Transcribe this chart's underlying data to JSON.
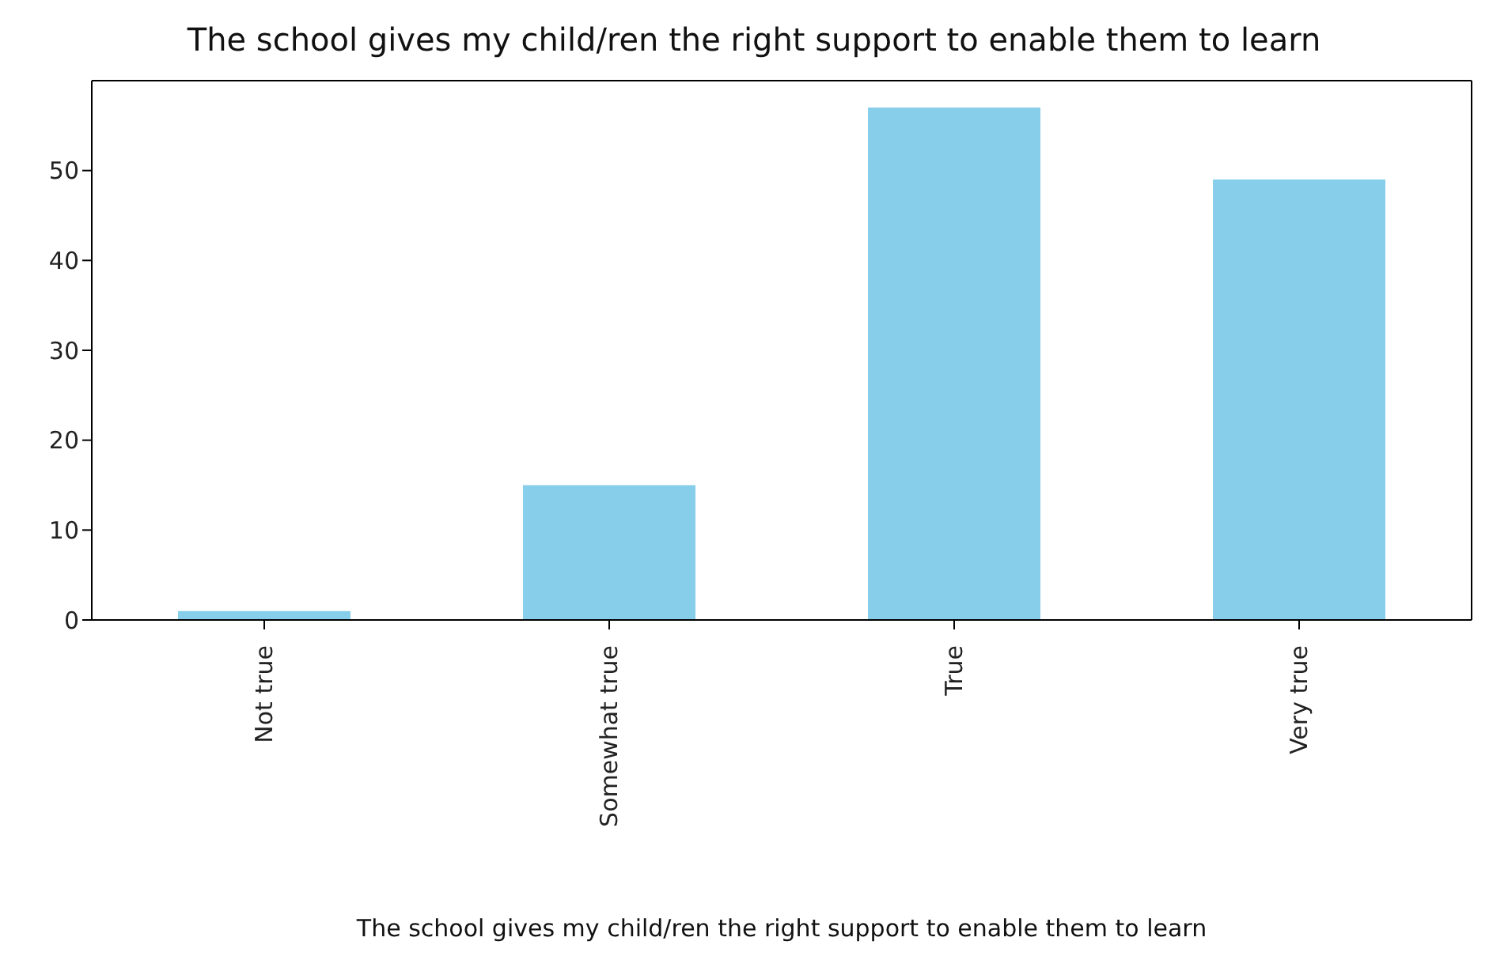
{
  "chart_data": {
    "type": "bar",
    "title": "The school gives my child/ren the right support to enable them to learn",
    "xlabel": "The school gives my child/ren the right support to enable them to learn",
    "categories": [
      "Not true",
      "Somewhat true",
      "True",
      "Very true"
    ],
    "values": [
      1,
      15,
      57,
      49
    ],
    "color": "#87ceeb",
    "ylim": [
      0,
      60
    ],
    "yticks": [
      0,
      10,
      20,
      30,
      40,
      50
    ],
    "grid": false,
    "legend": false
  }
}
